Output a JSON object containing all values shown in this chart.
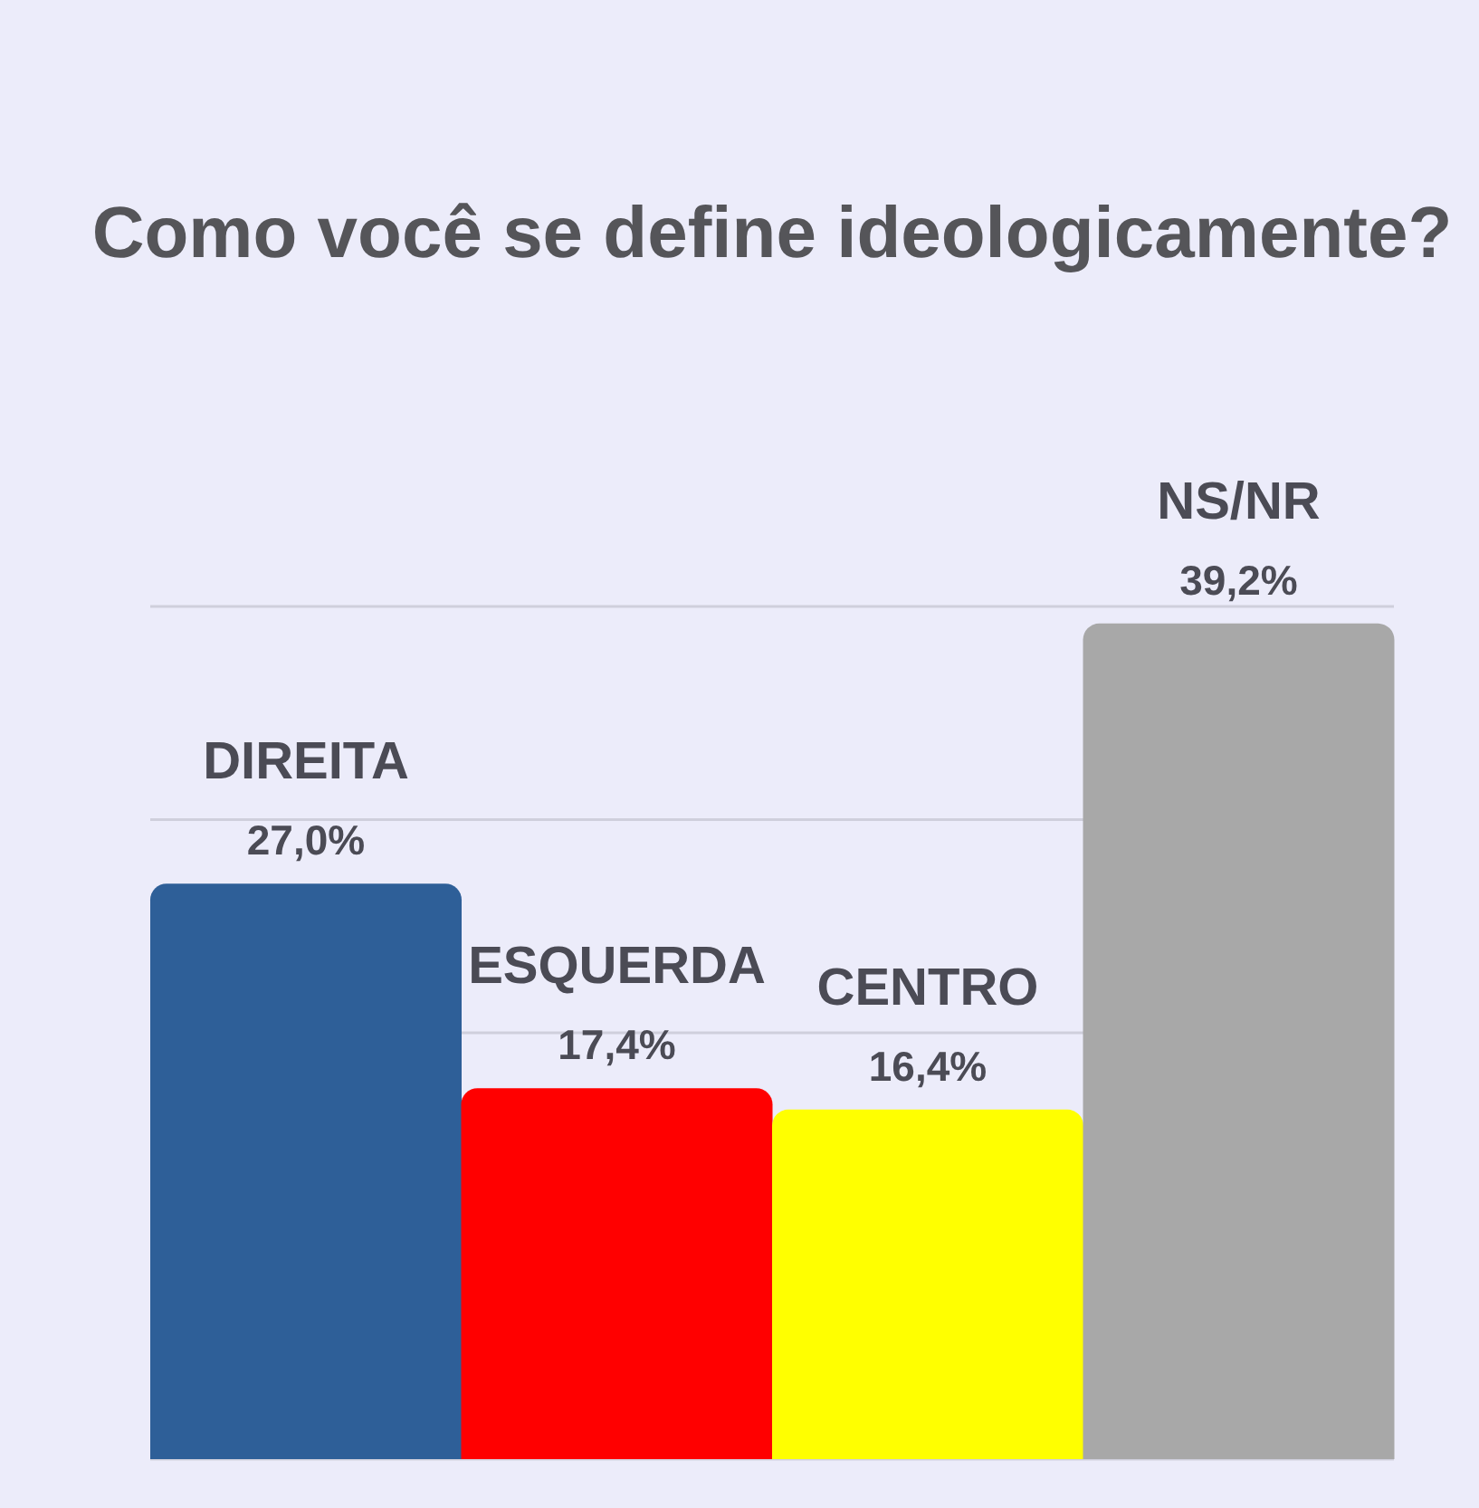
{
  "chart_data": {
    "type": "bar",
    "title": "Como você se define ideologicamente?",
    "categories": [
      "DIREITA",
      "ESQUERDA",
      "CENTRO",
      "NS/NR"
    ],
    "values": [
      27.0,
      17.4,
      16.4,
      39.2
    ],
    "colors": [
      "#2e5f98",
      "#ff0000",
      "#ffff00",
      "#a8a8a8"
    ],
    "value_labels": [
      "27,0%",
      "17,4%",
      "16,4%",
      "39,2%"
    ],
    "ylim": [
      0,
      40
    ],
    "yticks": [
      {
        "value": 20,
        "label": null
      },
      {
        "value": 30,
        "label": null
      },
      {
        "value": 40,
        "label": null
      }
    ],
    "grid": "y",
    "tick_labels": "x"
  }
}
